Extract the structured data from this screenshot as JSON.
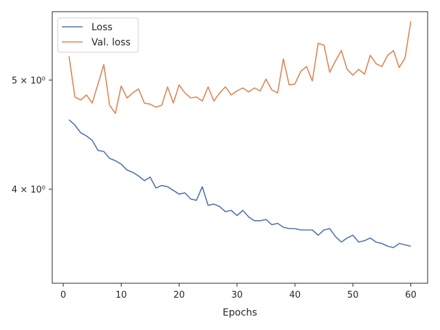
{
  "chart_data": {
    "type": "line",
    "xlabel": "Epochs",
    "ylabel": "",
    "y_scale": "log",
    "xlim": [
      -1.9,
      62.9
    ],
    "ylim": [
      3.3,
      5.75
    ],
    "x_ticks": [
      0,
      10,
      20,
      30,
      40,
      50,
      60
    ],
    "x_tick_labels": [
      "0",
      "10",
      "20",
      "30",
      "40",
      "50",
      "60"
    ],
    "y_ticks": [
      4.0,
      5.0
    ],
    "y_tick_labels": [
      "4 × 10⁰",
      "5 × 10⁰"
    ],
    "grid": false,
    "legend_position": "top-left",
    "x": [
      1,
      2,
      3,
      4,
      5,
      6,
      7,
      8,
      9,
      10,
      11,
      12,
      13,
      14,
      15,
      16,
      17,
      18,
      19,
      20,
      21,
      22,
      23,
      24,
      25,
      26,
      27,
      28,
      29,
      30,
      31,
      32,
      33,
      34,
      35,
      36,
      37,
      38,
      39,
      40,
      41,
      42,
      43,
      44,
      45,
      46,
      47,
      48,
      49,
      50,
      51,
      52,
      53,
      54,
      55,
      56,
      57,
      58,
      59,
      60
    ],
    "series": [
      {
        "name": "Loss",
        "color": "#4c72b0",
        "values": [
          4.61,
          4.56,
          4.49,
          4.46,
          4.42,
          4.33,
          4.32,
          4.26,
          4.24,
          4.21,
          4.16,
          4.14,
          4.11,
          4.07,
          4.1,
          4.01,
          4.03,
          4.02,
          3.99,
          3.96,
          3.97,
          3.92,
          3.91,
          4.02,
          3.87,
          3.88,
          3.86,
          3.82,
          3.83,
          3.79,
          3.83,
          3.78,
          3.75,
          3.75,
          3.76,
          3.72,
          3.73,
          3.7,
          3.69,
          3.69,
          3.68,
          3.68,
          3.68,
          3.64,
          3.68,
          3.69,
          3.63,
          3.59,
          3.62,
          3.64,
          3.59,
          3.6,
          3.62,
          3.59,
          3.58,
          3.56,
          3.55,
          3.58,
          3.57,
          3.56
        ]
      },
      {
        "name": "Val. loss",
        "color": "#dd8452",
        "values": [
          5.25,
          4.83,
          4.8,
          4.85,
          4.77,
          4.96,
          5.16,
          4.75,
          4.67,
          4.94,
          4.82,
          4.87,
          4.91,
          4.77,
          4.76,
          4.73,
          4.75,
          4.93,
          4.77,
          4.95,
          4.87,
          4.82,
          4.83,
          4.79,
          4.93,
          4.79,
          4.87,
          4.93,
          4.85,
          4.89,
          4.92,
          4.88,
          4.92,
          4.89,
          5.01,
          4.9,
          4.87,
          5.22,
          4.95,
          4.96,
          5.09,
          5.14,
          4.99,
          5.39,
          5.37,
          5.08,
          5.2,
          5.31,
          5.11,
          5.05,
          5.11,
          5.06,
          5.26,
          5.17,
          5.14,
          5.26,
          5.31,
          5.13,
          5.23,
          5.64
        ]
      }
    ]
  }
}
